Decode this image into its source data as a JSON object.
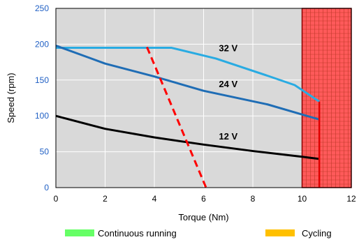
{
  "chart_data": {
    "type": "line",
    "xlabel": "Torque (Nm)",
    "ylabel": "Speed (rpm)",
    "xlim": [
      0,
      12
    ],
    "ylim": [
      0,
      250
    ],
    "x_ticks": [
      "0",
      "2",
      "4",
      "6",
      "8",
      "10",
      "12"
    ],
    "y_ticks": [
      "0",
      "50",
      "100",
      "150",
      "200",
      "250"
    ],
    "grid": true,
    "series": [
      {
        "name": "32 V",
        "color": "#29abe2",
        "points": [
          [
            0,
            195
          ],
          [
            4.7,
            195
          ],
          [
            6.5,
            180
          ],
          [
            8.6,
            156
          ],
          [
            9.7,
            143
          ],
          [
            10.7,
            120
          ]
        ]
      },
      {
        "name": "24 V",
        "color": "#1f6db5",
        "points": [
          [
            0,
            198
          ],
          [
            2,
            173
          ],
          [
            4,
            155
          ],
          [
            6,
            135
          ],
          [
            8.6,
            116
          ],
          [
            10,
            102
          ],
          [
            10.7,
            95
          ]
        ]
      },
      {
        "name": "12 V",
        "color": "#000000",
        "points": [
          [
            0,
            100
          ],
          [
            2,
            82
          ],
          [
            4,
            70
          ],
          [
            6,
            60
          ],
          [
            8,
            51
          ],
          [
            10,
            43
          ],
          [
            10.7,
            40
          ]
        ]
      }
    ],
    "series_labels": [
      {
        "text": "32 V",
        "at": [
          7,
          190
        ]
      },
      {
        "text": "24 V",
        "at": [
          7,
          140
        ]
      },
      {
        "text": "12 V",
        "at": [
          7,
          67
        ]
      }
    ],
    "limit_line": {
      "color": "#ff0000",
      "style": "dashed",
      "points": [
        [
          3.7,
          196
        ],
        [
          6.1,
          0
        ]
      ]
    },
    "limit_vertical": {
      "color": "#e00000",
      "x": 10.7,
      "y_range": [
        0,
        120
      ]
    },
    "cycling_region": {
      "x_range": [
        10,
        12
      ],
      "y_range": [
        0,
        250
      ],
      "fill": "#ff5a5a",
      "border": "#8b0000"
    },
    "legend": [
      {
        "label": "Continuous running",
        "color": "#66ff66"
      },
      {
        "label": "Cycling",
        "color": "#ffc000"
      }
    ]
  }
}
